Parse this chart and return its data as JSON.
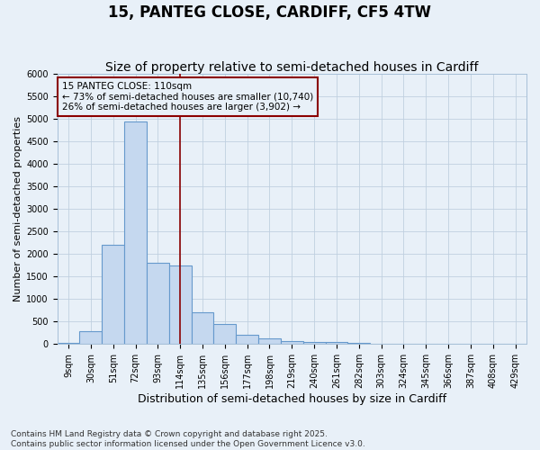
{
  "title": "15, PANTEG CLOSE, CARDIFF, CF5 4TW",
  "subtitle": "Size of property relative to semi-detached houses in Cardiff",
  "xlabel": "Distribution of semi-detached houses by size in Cardiff",
  "ylabel": "Number of semi-detached properties",
  "categories": [
    "9sqm",
    "30sqm",
    "51sqm",
    "72sqm",
    "93sqm",
    "114sqm",
    "135sqm",
    "156sqm",
    "177sqm",
    "198sqm",
    "219sqm",
    "240sqm",
    "261sqm",
    "282sqm",
    "303sqm",
    "324sqm",
    "345sqm",
    "366sqm",
    "387sqm",
    "408sqm",
    "429sqm"
  ],
  "values": [
    30,
    280,
    2200,
    4950,
    1800,
    1750,
    700,
    450,
    200,
    130,
    70,
    55,
    40,
    20,
    0,
    0,
    0,
    0,
    0,
    0,
    0
  ],
  "bar_color": "#c5d8ef",
  "bar_edge_color": "#6699cc",
  "grid_color": "#c0d0e0",
  "bg_color": "#e8f0f8",
  "annotation_text": "15 PANTEG CLOSE: 110sqm\n← 73% of semi-detached houses are smaller (10,740)\n26% of semi-detached houses are larger (3,902) →",
  "vline_x": 5.0,
  "ylim": [
    0,
    6000
  ],
  "yticks": [
    0,
    500,
    1000,
    1500,
    2000,
    2500,
    3000,
    3500,
    4000,
    4500,
    5000,
    5500,
    6000
  ],
  "footer": "Contains HM Land Registry data © Crown copyright and database right 2025.\nContains public sector information licensed under the Open Government Licence v3.0.",
  "title_fontsize": 12,
  "subtitle_fontsize": 10,
  "ylabel_fontsize": 8,
  "xlabel_fontsize": 9,
  "tick_fontsize": 7,
  "annot_fontsize": 7.5,
  "footer_fontsize": 6.5
}
